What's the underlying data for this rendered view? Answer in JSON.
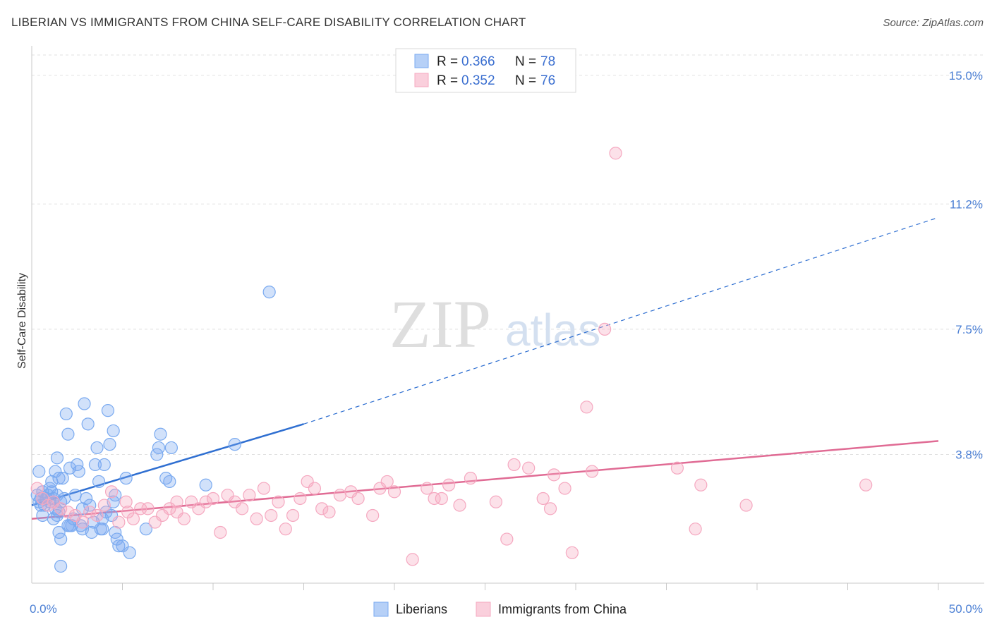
{
  "header": {
    "title": "LIBERIAN VS IMMIGRANTS FROM CHINA SELF-CARE DISABILITY CORRELATION CHART",
    "source": "Source: ZipAtlas.com"
  },
  "watermark": {
    "zip": "ZIP",
    "atlas": "atlas"
  },
  "chart_data": {
    "type": "scatter",
    "title": "LIBERIAN VS IMMIGRANTS FROM CHINA SELF-CARE DISABILITY CORRELATION CHART",
    "xlabel": "",
    "ylabel": "Self-Care Disability",
    "xlim": [
      0,
      50
    ],
    "ylim": [
      0,
      15.6
    ],
    "x_tick_labels": [
      "0.0%",
      "50.0%"
    ],
    "y_ticks": [
      3.8,
      7.5,
      11.2,
      15.0
    ],
    "y_tick_labels": [
      "3.8%",
      "7.5%",
      "11.2%",
      "15.0%"
    ],
    "grid": true,
    "legend_placement": "top-center",
    "series": [
      {
        "name": "Liberians",
        "color": "#7aaaf0",
        "line_color": "#2f6fd1",
        "R": "0.366",
        "N": "78",
        "trend": {
          "x0": 0,
          "y0": 2.3,
          "x1_solid": 15,
          "y1_solid": 4.7,
          "x1": 50,
          "y1": 10.8
        },
        "points": [
          [
            0.3,
            2.6
          ],
          [
            0.4,
            2.4
          ],
          [
            0.5,
            2.5
          ],
          [
            0.6,
            2.7
          ],
          [
            0.7,
            2.3
          ],
          [
            0.8,
            2.5
          ],
          [
            0.9,
            2.6
          ],
          [
            1.0,
            2.4
          ],
          [
            1.1,
            2.7
          ],
          [
            1.2,
            2.5
          ],
          [
            1.3,
            2.2
          ],
          [
            1.4,
            2.6
          ],
          [
            1.5,
            2.1
          ],
          [
            1.6,
            2.4
          ],
          [
            0.4,
            3.3
          ],
          [
            0.6,
            2.0
          ],
          [
            1.2,
            1.9
          ],
          [
            1.1,
            3.0
          ],
          [
            1.3,
            3.3
          ],
          [
            1.4,
            3.7
          ],
          [
            1.5,
            3.1
          ],
          [
            1.4,
            2.0
          ],
          [
            1.7,
            3.1
          ],
          [
            1.8,
            2.5
          ],
          [
            1.6,
            1.3
          ],
          [
            2.0,
            4.4
          ],
          [
            1.9,
            5.0
          ],
          [
            2.1,
            3.4
          ],
          [
            2.2,
            1.7
          ],
          [
            2.3,
            1.9
          ],
          [
            2.4,
            2.6
          ],
          [
            2.5,
            3.5
          ],
          [
            2.6,
            3.3
          ],
          [
            2.7,
            1.7
          ],
          [
            2.8,
            2.2
          ],
          [
            2.9,
            5.3
          ],
          [
            3.0,
            2.5
          ],
          [
            3.1,
            4.7
          ],
          [
            3.2,
            2.3
          ],
          [
            3.3,
            1.5
          ],
          [
            3.4,
            1.8
          ],
          [
            3.5,
            3.5
          ],
          [
            3.6,
            4.0
          ],
          [
            3.7,
            3.0
          ],
          [
            3.8,
            1.6
          ],
          [
            3.9,
            1.9
          ],
          [
            4.0,
            3.5
          ],
          [
            4.1,
            2.1
          ],
          [
            4.2,
            5.1
          ],
          [
            4.3,
            4.1
          ],
          [
            4.4,
            2.0
          ],
          [
            4.5,
            2.4
          ],
          [
            4.6,
            1.5
          ],
          [
            4.8,
            1.1
          ],
          [
            5.0,
            1.1
          ],
          [
            5.2,
            3.1
          ],
          [
            5.4,
            0.9
          ],
          [
            6.3,
            1.6
          ],
          [
            6.9,
            3.8
          ],
          [
            7.1,
            4.4
          ],
          [
            7.4,
            3.1
          ],
          [
            7.6,
            3.0
          ],
          [
            7.7,
            4.0
          ],
          [
            7.0,
            4.0
          ],
          [
            9.6,
            2.9
          ],
          [
            11.2,
            4.1
          ],
          [
            13.1,
            8.6
          ],
          [
            4.7,
            1.3
          ],
          [
            2.0,
            1.7
          ],
          [
            2.8,
            1.6
          ],
          [
            1.0,
            2.8
          ],
          [
            0.5,
            2.3
          ],
          [
            1.5,
            1.5
          ],
          [
            3.9,
            1.6
          ],
          [
            2.1,
            1.7
          ],
          [
            4.6,
            2.6
          ],
          [
            1.6,
            0.5
          ],
          [
            4.5,
            4.5
          ]
        ]
      },
      {
        "name": "Immigrants from China",
        "color": "#f5a8c0",
        "line_color": "#e06b94",
        "R": "0.352",
        "N": "76",
        "trend": {
          "x0": 0,
          "y0": 1.9,
          "x1": 50,
          "y1": 4.2
        },
        "points": [
          [
            0.3,
            2.8
          ],
          [
            0.6,
            2.5
          ],
          [
            0.9,
            2.3
          ],
          [
            1.2,
            2.4
          ],
          [
            1.6,
            2.2
          ],
          [
            2.0,
            2.1
          ],
          [
            2.4,
            2.0
          ],
          [
            2.8,
            1.8
          ],
          [
            3.2,
            2.1
          ],
          [
            3.6,
            2.0
          ],
          [
            4.0,
            2.3
          ],
          [
            4.4,
            2.7
          ],
          [
            4.8,
            1.8
          ],
          [
            5.2,
            2.4
          ],
          [
            5.6,
            1.9
          ],
          [
            6.0,
            2.2
          ],
          [
            6.4,
            2.2
          ],
          [
            6.8,
            1.8
          ],
          [
            7.2,
            2.0
          ],
          [
            7.6,
            2.2
          ],
          [
            8.0,
            2.1
          ],
          [
            8.4,
            1.9
          ],
          [
            8.8,
            2.4
          ],
          [
            9.2,
            2.2
          ],
          [
            9.6,
            2.4
          ],
          [
            10.0,
            2.5
          ],
          [
            10.4,
            1.5
          ],
          [
            10.8,
            2.6
          ],
          [
            11.2,
            2.4
          ],
          [
            11.6,
            2.2
          ],
          [
            12.0,
            2.6
          ],
          [
            12.4,
            1.9
          ],
          [
            12.8,
            2.8
          ],
          [
            13.2,
            2.0
          ],
          [
            13.6,
            2.4
          ],
          [
            14.0,
            1.6
          ],
          [
            14.4,
            2.0
          ],
          [
            14.8,
            2.5
          ],
          [
            15.2,
            3.0
          ],
          [
            15.6,
            2.8
          ],
          [
            16.0,
            2.2
          ],
          [
            16.4,
            2.1
          ],
          [
            17.0,
            2.6
          ],
          [
            17.6,
            2.7
          ],
          [
            18.0,
            2.5
          ],
          [
            18.8,
            2.0
          ],
          [
            19.2,
            2.8
          ],
          [
            19.6,
            3.0
          ],
          [
            20.0,
            2.7
          ],
          [
            21.0,
            0.7
          ],
          [
            21.8,
            2.8
          ],
          [
            22.2,
            2.5
          ],
          [
            22.6,
            2.5
          ],
          [
            23.0,
            2.9
          ],
          [
            23.6,
            2.3
          ],
          [
            24.2,
            3.1
          ],
          [
            25.6,
            2.4
          ],
          [
            26.2,
            1.3
          ],
          [
            26.6,
            3.5
          ],
          [
            27.4,
            3.4
          ],
          [
            28.2,
            2.5
          ],
          [
            28.6,
            2.2
          ],
          [
            28.8,
            3.2
          ],
          [
            29.4,
            2.8
          ],
          [
            29.8,
            0.9
          ],
          [
            30.6,
            5.2
          ],
          [
            30.9,
            3.3
          ],
          [
            31.6,
            7.5
          ],
          [
            32.2,
            12.7
          ],
          [
            35.6,
            3.4
          ],
          [
            36.6,
            1.6
          ],
          [
            36.9,
            2.9
          ],
          [
            39.4,
            2.3
          ],
          [
            46.0,
            2.9
          ],
          [
            8.0,
            2.4
          ],
          [
            5.3,
            2.1
          ]
        ]
      }
    ]
  }
}
